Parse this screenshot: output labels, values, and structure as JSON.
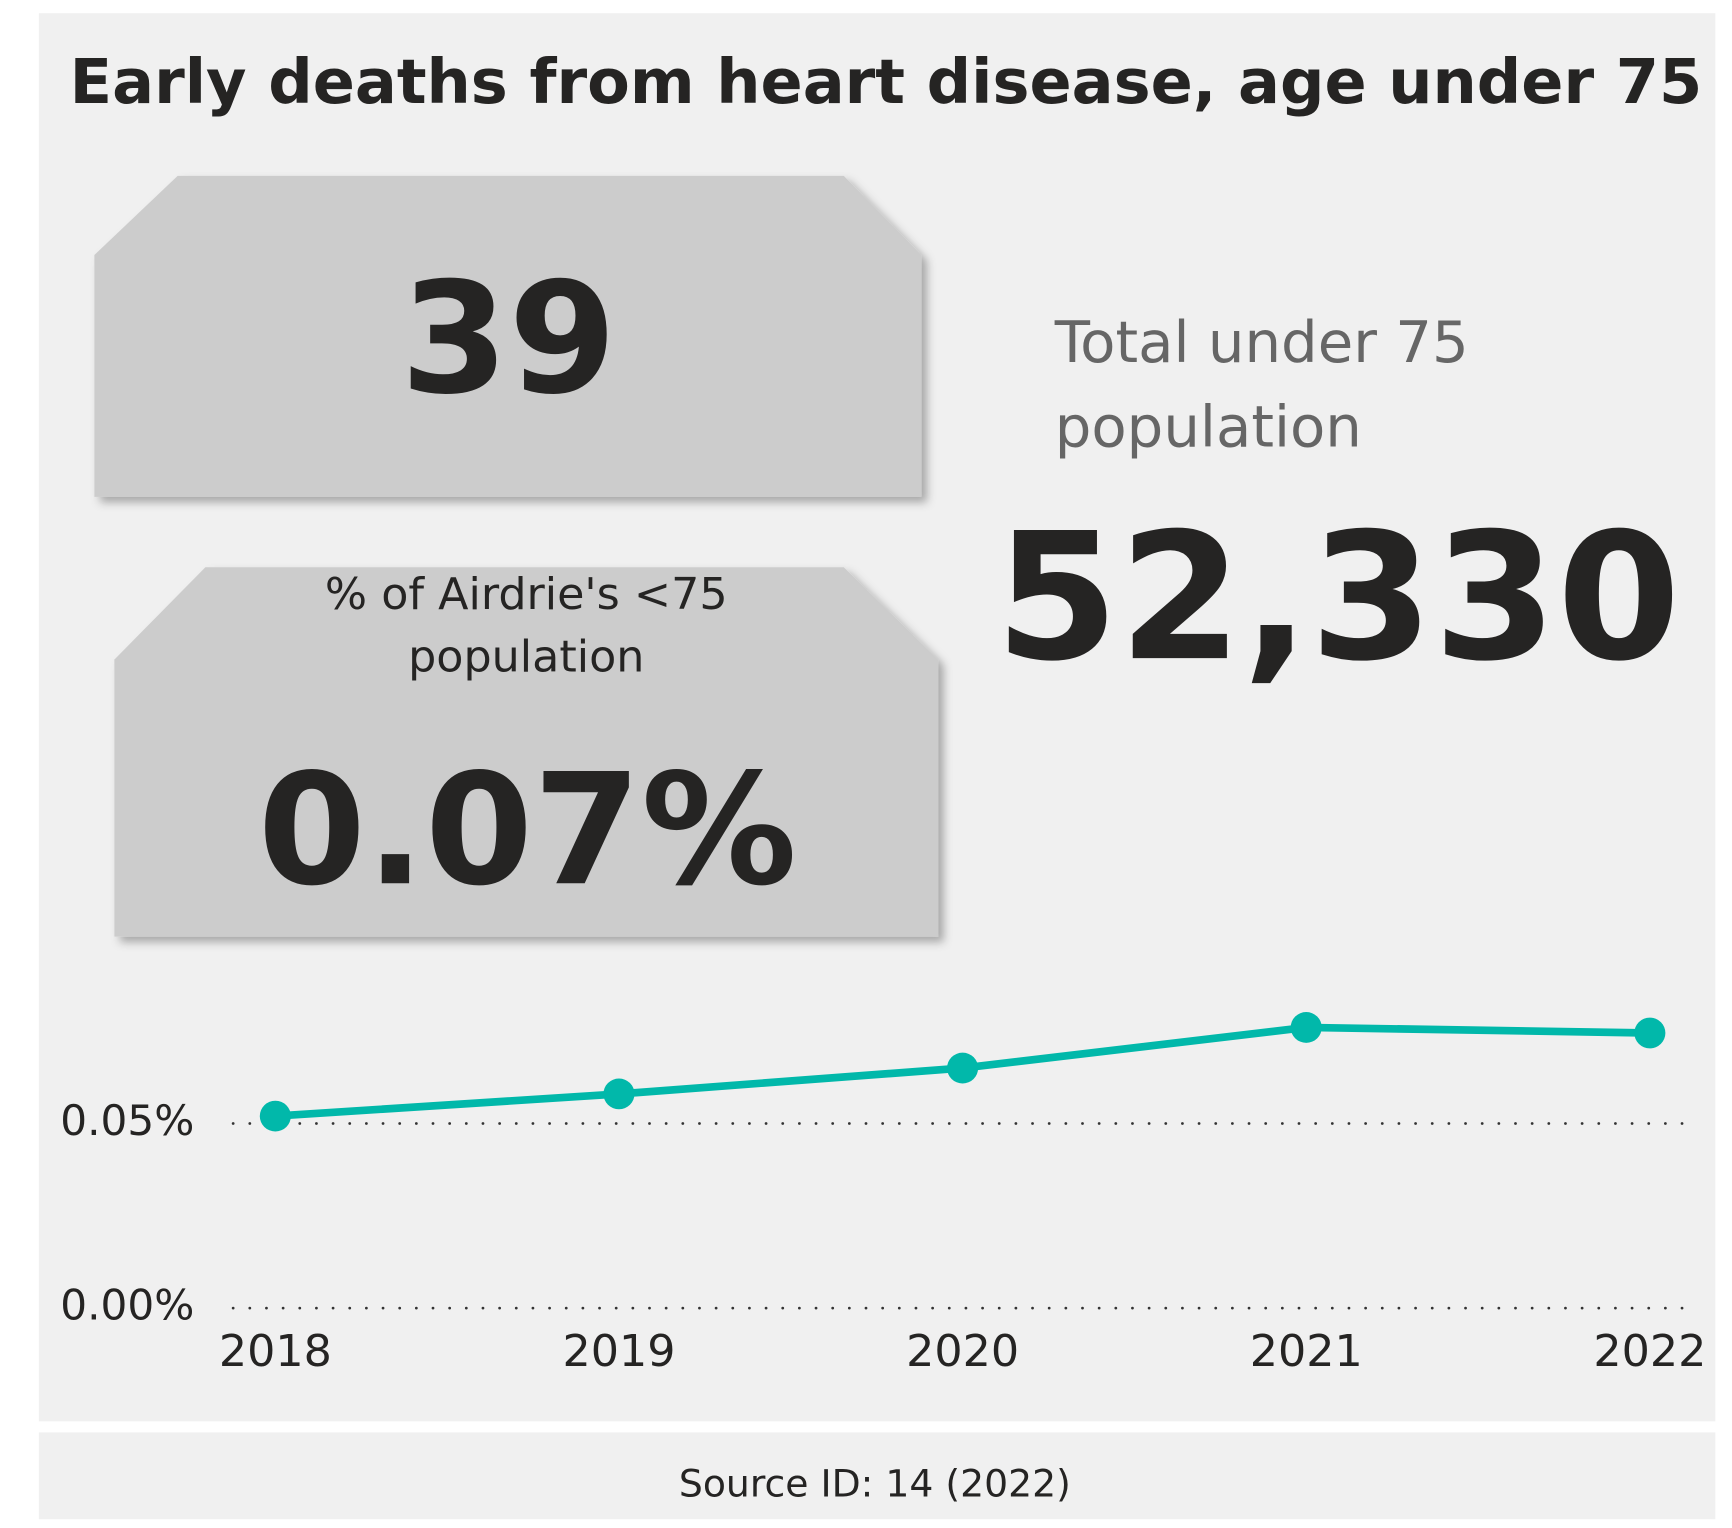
{
  "title": "Early deaths from heart disease, age under 75",
  "deaths_card": {
    "value": "39"
  },
  "percent_card": {
    "label_lines": [
      "% of Airdrie's <75",
      "population"
    ],
    "value": "0.07%"
  },
  "population_card": {
    "label_lines": [
      "Total under 75",
      "population"
    ],
    "value": "52,330"
  },
  "chart_data": {
    "type": "line",
    "categories": [
      "2018",
      "2019",
      "2020",
      "2021",
      "2022"
    ],
    "series": [
      {
        "color": "#01b8aa",
        "values": [
          0.052,
          0.058,
          0.065,
          0.076,
          0.0745
        ]
      }
    ],
    "ylim": [
      0,
      0.085
    ],
    "yticks": [
      {
        "value": 0,
        "label": "0.00%"
      },
      {
        "value": 0.05,
        "label": "0.05%"
      }
    ],
    "grid": true
  },
  "footer": {
    "source": "Source ID: 14 (2022)"
  }
}
